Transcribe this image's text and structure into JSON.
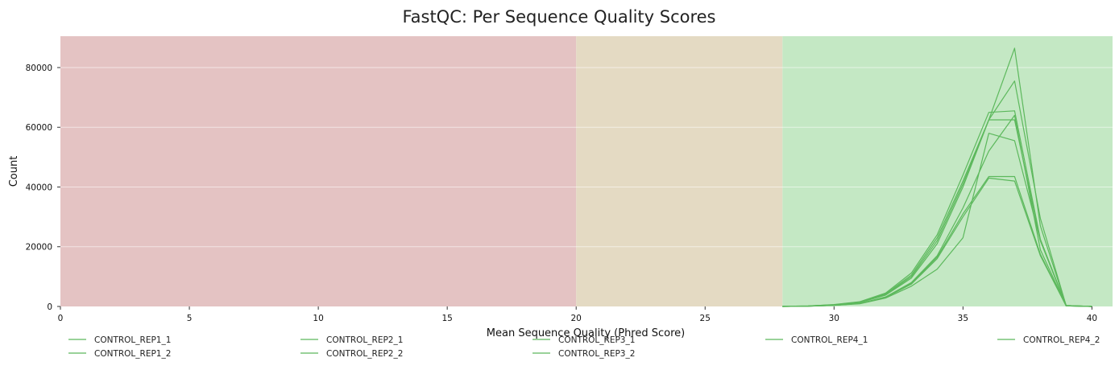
{
  "chart_data": {
    "type": "line",
    "title": "FastQC: Per Sequence Quality Scores",
    "xlabel": "Mean Sequence Quality (Phred Score)",
    "ylabel": "Count",
    "xlim": [
      0,
      40.8
    ],
    "ylim": [
      0,
      90500
    ],
    "x_ticks": [
      0,
      5,
      10,
      15,
      20,
      25,
      30,
      35,
      40
    ],
    "y_ticks": [
      0,
      20000,
      40000,
      60000,
      80000
    ],
    "grid": true,
    "legend_position": "bottom",
    "line_color": "#5cb85c",
    "bands": [
      {
        "from": 0,
        "to": 20,
        "color": "#e4c3c3"
      },
      {
        "from": 20,
        "to": 28,
        "color": "#e4dac3"
      },
      {
        "from": 28,
        "to": 40.8,
        "color": "#c4e8c4"
      }
    ],
    "x": [
      28,
      29,
      30,
      31,
      32,
      33,
      34,
      35,
      36,
      37,
      38,
      39,
      40
    ],
    "series": [
      {
        "name": "CONTROL_REP1_1",
        "values": [
          20,
          150,
          600,
          1500,
          4200,
          10500,
          23000,
          42000,
          62500,
          86500,
          27000,
          300,
          0
        ]
      },
      {
        "name": "CONTROL_REP1_2",
        "values": [
          20,
          130,
          500,
          1300,
          3800,
          9500,
          21000,
          40000,
          62500,
          75500,
          29500,
          300,
          0
        ]
      },
      {
        "name": "CONTROL_REP2_1",
        "values": [
          20,
          150,
          650,
          1600,
          4500,
          11200,
          24000,
          44000,
          65000,
          65500,
          22500,
          300,
          0
        ]
      },
      {
        "name": "CONTROL_REP2_2",
        "values": [
          20,
          130,
          550,
          1400,
          4000,
          10000,
          22000,
          41000,
          62500,
          62500,
          22000,
          300,
          0
        ]
      },
      {
        "name": "CONTROL_REP3_1",
        "values": [
          10,
          90,
          400,
          1000,
          3000,
          7500,
          16000,
          30000,
          43000,
          42000,
          17000,
          200,
          0
        ]
      },
      {
        "name": "CONTROL_REP3_2",
        "values": [
          10,
          90,
          400,
          1000,
          3100,
          7700,
          16500,
          31000,
          43500,
          43500,
          17500,
          200,
          0
        ]
      },
      {
        "name": "CONTROL_REP4_1",
        "values": [
          10,
          80,
          350,
          900,
          2800,
          6800,
          12500,
          23000,
          58000,
          55500,
          22000,
          200,
          0
        ]
      },
      {
        "name": "CONTROL_REP4_2",
        "values": [
          10,
          90,
          400,
          1000,
          3200,
          8000,
          17000,
          33000,
          52000,
          64000,
          19000,
          200,
          0
        ]
      }
    ]
  }
}
